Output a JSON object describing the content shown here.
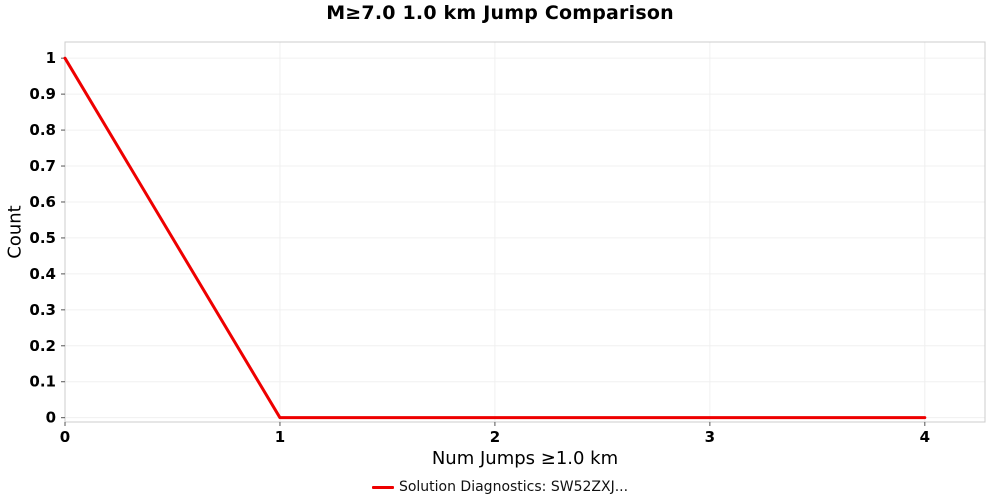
{
  "chart_data": {
    "type": "line",
    "title": "M≥7.0 1.0 km Jump Comparison",
    "xlabel": "Num Jumps ≥1.0 km",
    "ylabel": "Count",
    "x": [
      0,
      1,
      2,
      3,
      4
    ],
    "series": [
      {
        "name": "Solution Diagnostics: SW52ZXJ...",
        "color": "#ee0000",
        "values": [
          1,
          0,
          0,
          0,
          0
        ]
      }
    ],
    "xticks": [
      0,
      1,
      2,
      3,
      4
    ],
    "yticks": [
      0,
      0.1,
      0.2,
      0.3,
      0.4,
      0.5,
      0.6,
      0.7,
      0.8,
      0.9,
      1
    ],
    "xlim": [
      0,
      4.28
    ],
    "ylim": [
      -0.012,
      1.045
    ],
    "grid": true,
    "grid_color": "#f0f0f0",
    "border_color": "#cccccc",
    "tick_color": "#555555",
    "legend_position": "bottom"
  }
}
